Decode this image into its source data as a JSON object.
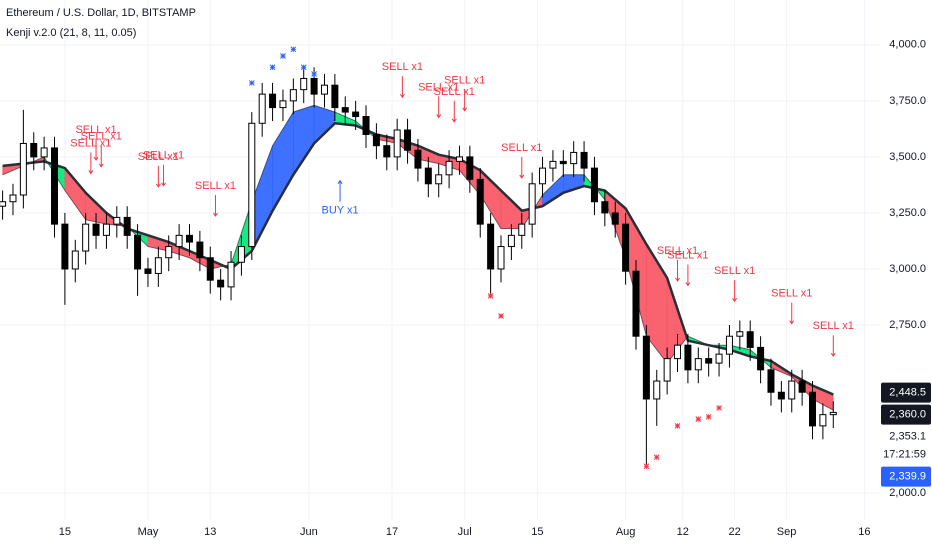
{
  "chart_data": {
    "type": "candlestick",
    "title": "Ethereum / U.S. Dollar, 1D, BITSTAMP",
    "subtitle": "Kenji v.2.0 (21, 8, 11, 0.05)",
    "xlim": [
      -0.5,
      169
    ],
    "xticks": [
      {
        "value": 12,
        "label": "15"
      },
      {
        "value": 28,
        "label": "May"
      },
      {
        "value": 40,
        "label": "13"
      },
      {
        "value": 59,
        "label": "Jun"
      },
      {
        "value": 75,
        "label": "17"
      },
      {
        "value": 89,
        "label": "Jul"
      },
      {
        "value": 103,
        "label": "15"
      },
      {
        "value": 120,
        "label": "Aug"
      },
      {
        "value": 131,
        "label": "12"
      },
      {
        "value": 141,
        "label": "22"
      },
      {
        "value": 151,
        "label": "Sep"
      },
      {
        "value": 166,
        "label": "16"
      }
    ],
    "ylim": [
      1880,
      4200
    ],
    "yticks": [
      {
        "value": 2000,
        "label": "2,000.0"
      },
      {
        "value": 2750,
        "label": "2,750.0"
      },
      {
        "value": 3000,
        "label": "3,000.0"
      },
      {
        "value": 3250,
        "label": "3,250.0"
      },
      {
        "value": 3500,
        "label": "3,500.0"
      },
      {
        "value": 3750,
        "label": "3,750.0"
      },
      {
        "value": 4000,
        "label": "4,000.0"
      }
    ],
    "grid": true,
    "candles": {
      "up_color": "#ffffff",
      "down_color": "#000000",
      "border_color": "#000000",
      "x": [
        0,
        2,
        4,
        6,
        8,
        10,
        12,
        14,
        16,
        18,
        20,
        22,
        24,
        26,
        28,
        30,
        32,
        34,
        36,
        38,
        40,
        42,
        44,
        46,
        48,
        50,
        52,
        54,
        56,
        58,
        60,
        62,
        64,
        66,
        68,
        70,
        72,
        74,
        76,
        78,
        80,
        82,
        84,
        86,
        88,
        90,
        92,
        94,
        96,
        98,
        100,
        102,
        104,
        106,
        108,
        110,
        112,
        114,
        116,
        118,
        120,
        122,
        124,
        126,
        128,
        130,
        132,
        134,
        136,
        138,
        140,
        142,
        144,
        146,
        148,
        150,
        152,
        154,
        156,
        158,
        160
      ],
      "open": [
        3280,
        3300,
        3330,
        3560,
        3500,
        3540,
        3200,
        3000,
        3080,
        3200,
        3150,
        3200,
        3230,
        3150,
        3000,
        2980,
        3050,
        3100,
        3150,
        3120,
        3050,
        2950,
        2920,
        3030,
        3100,
        3650,
        3780,
        3720,
        3750,
        3800,
        3850,
        3780,
        3820,
        3720,
        3700,
        3680,
        3600,
        3550,
        3500,
        3620,
        3530,
        3450,
        3380,
        3420,
        3480,
        3500,
        3400,
        3200,
        3000,
        3100,
        3150,
        3200,
        3380,
        3450,
        3480,
        3470,
        3520,
        3450,
        3300,
        3250,
        3200,
        2990,
        2700,
        2420,
        2500,
        2600,
        2660,
        2550,
        2600,
        2580,
        2620,
        2700,
        2720,
        2650,
        2550,
        2450,
        2420,
        2500,
        2450,
        2300,
        2350
      ],
      "high": [
        3350,
        3380,
        3710,
        3610,
        3590,
        3590,
        3250,
        3130,
        3250,
        3250,
        3250,
        3280,
        3280,
        3200,
        3050,
        3100,
        3150,
        3200,
        3200,
        3170,
        3100,
        3000,
        3080,
        3150,
        3700,
        3830,
        3830,
        3800,
        3850,
        3900,
        3900,
        3870,
        3870,
        3770,
        3750,
        3730,
        3650,
        3600,
        3670,
        3670,
        3580,
        3500,
        3470,
        3530,
        3550,
        3550,
        3450,
        3250,
        3150,
        3200,
        3250,
        3430,
        3500,
        3530,
        3530,
        3570,
        3570,
        3500,
        3350,
        3300,
        3250,
        3040,
        2750,
        2550,
        2650,
        2710,
        2710,
        2650,
        2650,
        2670,
        2750,
        2770,
        2770,
        2700,
        2600,
        2500,
        2550,
        2550,
        2500,
        2400,
        2410
      ],
      "low": [
        3220,
        3240,
        3270,
        3440,
        3440,
        3140,
        2840,
        2940,
        3020,
        3090,
        3090,
        3140,
        3090,
        2880,
        2920,
        2920,
        2990,
        3040,
        3060,
        2990,
        2890,
        2860,
        2860,
        2970,
        3040,
        3590,
        3660,
        3660,
        3690,
        3740,
        3720,
        3720,
        3660,
        3640,
        3620,
        3540,
        3490,
        3440,
        3440,
        3470,
        3390,
        3320,
        3320,
        3360,
        3420,
        3340,
        3140,
        2880,
        2940,
        3040,
        3090,
        3140,
        3320,
        3390,
        3410,
        3410,
        3390,
        3240,
        3190,
        3140,
        2930,
        2640,
        2110,
        2300,
        2440,
        2540,
        2490,
        2490,
        2520,
        2520,
        2560,
        2640,
        2590,
        2490,
        2390,
        2360,
        2360,
        2390,
        2240,
        2240,
        2290
      ],
      "close": [
        3300,
        3330,
        3560,
        3500,
        3540,
        3200,
        3000,
        3080,
        3200,
        3150,
        3200,
        3230,
        3150,
        3000,
        2980,
        3050,
        3100,
        3150,
        3120,
        3050,
        2950,
        2920,
        3030,
        3100,
        3650,
        3780,
        3720,
        3750,
        3800,
        3850,
        3780,
        3820,
        3720,
        3700,
        3680,
        3600,
        3550,
        3500,
        3620,
        3530,
        3450,
        3380,
        3420,
        3480,
        3500,
        3400,
        3200,
        3000,
        3100,
        3150,
        3200,
        3380,
        3450,
        3480,
        3470,
        3520,
        3450,
        3300,
        3250,
        3200,
        2990,
        2700,
        2420,
        2500,
        2600,
        2660,
        2550,
        2600,
        2580,
        2620,
        2700,
        2720,
        2650,
        2550,
        2450,
        2420,
        2500,
        2450,
        2300,
        2350,
        2360
      ]
    },
    "band": {
      "colors": {
        "up": "#00e676",
        "down": "#f7525f",
        "strong": "#2962ff"
      },
      "line_color": "#2a2e39",
      "x": [
        0,
        4,
        8,
        12,
        16,
        20,
        24,
        28,
        32,
        36,
        40,
        44,
        48,
        52,
        56,
        60,
        64,
        68,
        72,
        76,
        80,
        84,
        88,
        92,
        96,
        100,
        104,
        108,
        112,
        116,
        120,
        124,
        128,
        132,
        136,
        140,
        144,
        148,
        152,
        156,
        160
      ],
      "fast": [
        3420,
        3460,
        3500,
        3350,
        3220,
        3200,
        3190,
        3100,
        3080,
        3050,
        3000,
        3020,
        3300,
        3550,
        3700,
        3730,
        3700,
        3660,
        3580,
        3560,
        3490,
        3470,
        3440,
        3330,
        3180,
        3180,
        3330,
        3420,
        3420,
        3310,
        3050,
        2700,
        2580,
        2700,
        2660,
        2660,
        2640,
        2560,
        2520,
        2420,
        2370
      ],
      "slow": [
        3460,
        3470,
        3480,
        3450,
        3340,
        3250,
        3180,
        3150,
        3120,
        3080,
        3040,
        3000,
        3080,
        3260,
        3420,
        3560,
        3650,
        3640,
        3600,
        3580,
        3550,
        3510,
        3490,
        3440,
        3350,
        3260,
        3280,
        3340,
        3370,
        3350,
        3270,
        3110,
        2960,
        2680,
        2660,
        2640,
        2610,
        2590,
        2530,
        2480,
        2440
      ]
    },
    "markers": [
      {
        "color": "#2962ff",
        "x": [
          48,
          52,
          54,
          56,
          58,
          60
        ],
        "y": [
          3830,
          3900,
          3950,
          3980,
          3900,
          3870
        ]
      },
      {
        "color": "#f23645",
        "x": [
          94,
          96,
          124,
          126,
          130,
          134,
          136,
          138
        ],
        "y": [
          2880,
          2790,
          2120,
          2160,
          2300,
          2330,
          2340,
          2380
        ]
      }
    ],
    "annotations": [
      {
        "text": "SELL x1",
        "x": 17,
        "y": 3560,
        "color": "#f23645"
      },
      {
        "text": "SELL x1",
        "x": 18,
        "y": 3620,
        "color": "#f23645"
      },
      {
        "text": "SELL x1",
        "x": 19,
        "y": 3590,
        "color": "#f23645"
      },
      {
        "text": "SELL x1",
        "x": 30,
        "y": 3500,
        "color": "#f23645"
      },
      {
        "text": "SELL x1",
        "x": 31,
        "y": 3505,
        "color": "#f23645"
      },
      {
        "text": "SELL x1",
        "x": 41,
        "y": 3370,
        "color": "#f23645"
      },
      {
        "text": "BUY x1",
        "x": 65,
        "y": 3260,
        "color": "#2962ff"
      },
      {
        "text": "SELL x1",
        "x": 77,
        "y": 3900,
        "color": "#f23645"
      },
      {
        "text": "SELL x1",
        "x": 84,
        "y": 3810,
        "color": "#f23645"
      },
      {
        "text": "SELL x1",
        "x": 87,
        "y": 3790,
        "color": "#f23645"
      },
      {
        "text": "SELL x1",
        "x": 89,
        "y": 3840,
        "color": "#f23645"
      },
      {
        "text": "SELL x1",
        "x": 100,
        "y": 3540,
        "color": "#f23645"
      },
      {
        "text": "SELL x1",
        "x": 130,
        "y": 3080,
        "color": "#f23645"
      },
      {
        "text": "SELL x1",
        "x": 132,
        "y": 3060,
        "color": "#f23645"
      },
      {
        "text": "SELL x1",
        "x": 141,
        "y": 2990,
        "color": "#f23645"
      },
      {
        "text": "SELL x1",
        "x": 152,
        "y": 2890,
        "color": "#f23645"
      },
      {
        "text": "SELL x1",
        "x": 160,
        "y": 2745,
        "color": "#f23645"
      }
    ],
    "price_labels": [
      {
        "value": 2448.5,
        "label": "2,448.5",
        "background": "#131722",
        "color": "#ffffff"
      },
      {
        "value": 2360,
        "label": "2,360.0",
        "background": "#131722",
        "color": "#ffffff"
      },
      {
        "value": 2353.1,
        "label": "2,353.1",
        "background": "#ffffff",
        "color": "#131722",
        "countdown": "17:21:59"
      },
      {
        "value": 2339.9,
        "label": "2,339.9",
        "background": "#2962ff",
        "color": "#ffffff"
      }
    ]
  }
}
